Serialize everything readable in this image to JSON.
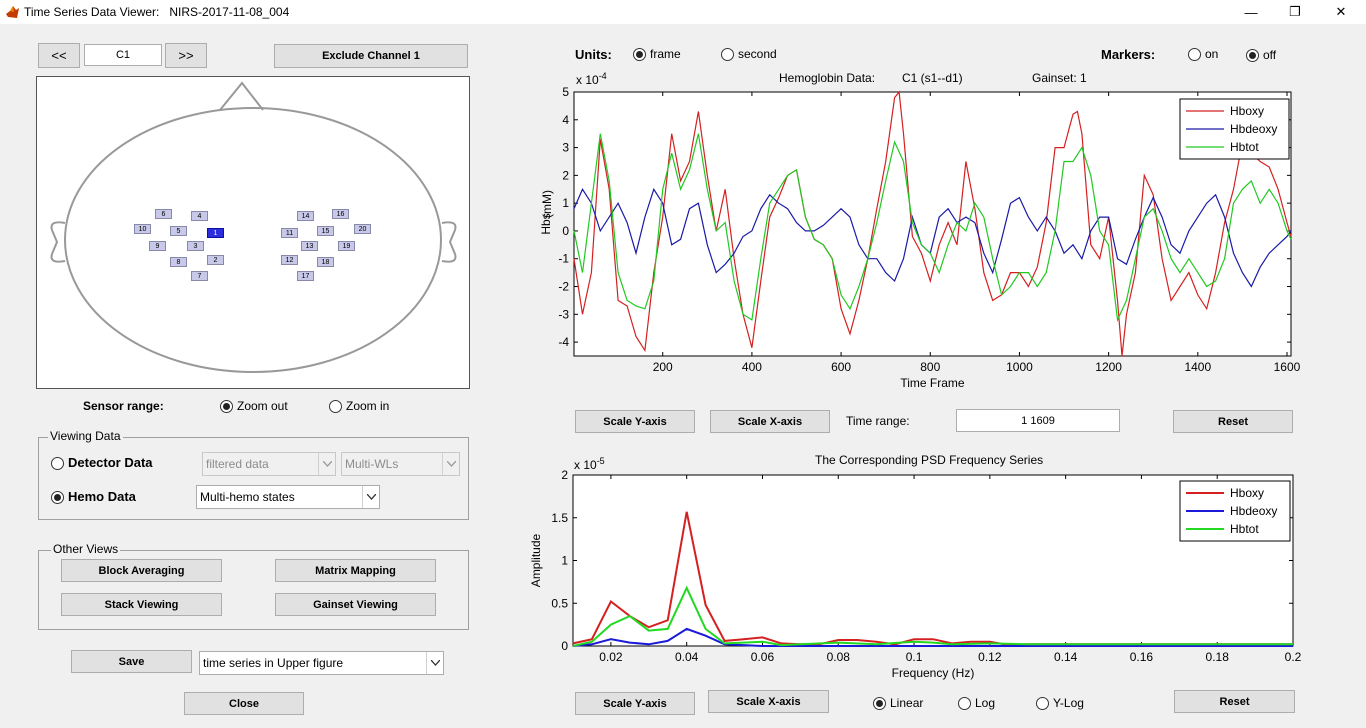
{
  "window": {
    "title": "Time Series Data Viewer:   NIRS-2017-11-08_004",
    "minimize": "—",
    "restore": "❐",
    "close": "✕"
  },
  "channel_nav": {
    "prev": "<<",
    "current": "C1",
    "next": ">>",
    "exclude": "Exclude Channel 1"
  },
  "probes": [
    "6",
    "4",
    "10",
    "5",
    "1",
    "9",
    "3",
    "8",
    "2",
    "7",
    "14",
    "16",
    "11",
    "15",
    "20",
    "13",
    "19",
    "12",
    "18",
    "17"
  ],
  "probe_selected": "1",
  "sensor_range": {
    "label": "Sensor range:",
    "zoom_out": "Zoom out",
    "zoom_in": "Zoom in",
    "selected": "zoom_out"
  },
  "viewing_data": {
    "title": "Viewing Data",
    "detector": "Detector Data",
    "hemo": "Hemo Data",
    "selected": "hemo",
    "filter_value": "filtered data",
    "wl_value": "Multi-WLs",
    "hemo_value": "Multi-hemo states"
  },
  "other_views": {
    "title": "Other Views",
    "block_averaging": "Block Averaging",
    "matrix_mapping": "Matrix Mapping",
    "stack_viewing": "Stack Viewing",
    "gainset_viewing": "Gainset Viewing"
  },
  "save": {
    "button": "Save",
    "target": "time series in Upper figure"
  },
  "close_button": "Close",
  "units": {
    "label": "Units:",
    "frame": "frame",
    "second": "second",
    "selected": "frame"
  },
  "markers": {
    "label": "Markers:",
    "on": "on",
    "off": "off",
    "selected": "off"
  },
  "top_plot": {
    "header_label": "Hemoglobin Data:",
    "header_channel": "C1  (s1--d1)",
    "header_gainset": "Gainset: 1",
    "exponent_base": "x 10",
    "exponent_power": "-4",
    "unit_label": "(mM)"
  },
  "top_controls": {
    "scale_y": "Scale Y-axis",
    "scale_x": "Scale X-axis",
    "time_range_label": "Time range:",
    "time_range_value": "1  1609",
    "reset": "Reset"
  },
  "bottom_plot": {
    "title": "The Corresponding PSD Frequency Series",
    "exponent_base": "x 10",
    "exponent_power": "-5"
  },
  "bottom_controls": {
    "scale_y": "Scale Y-axis",
    "scale_x": "Scale X-axis",
    "linear": "Linear",
    "log": "Log",
    "ylog": "Y-Log",
    "selected": "linear",
    "reset": "Reset"
  },
  "chart_data": [
    {
      "type": "line",
      "xlabel": "Time Frame",
      "ylabel": "Hbs",
      "xlim": [
        1,
        1609
      ],
      "ylim": [
        -4.5,
        5
      ],
      "xticks": [
        200,
        400,
        600,
        800,
        1000,
        1200,
        1400,
        1600
      ],
      "yticks": [
        -4,
        -3,
        -2,
        -1,
        0,
        1,
        2,
        3,
        4,
        5
      ],
      "legend_position": "top-right",
      "series": [
        {
          "name": "Hboxy",
          "color": "#d42020",
          "x": [
            1,
            20,
            40,
            60,
            80,
            100,
            120,
            140,
            160,
            180,
            200,
            220,
            240,
            260,
            280,
            300,
            320,
            340,
            360,
            380,
            400,
            420,
            440,
            460,
            480,
            500,
            520,
            540,
            560,
            580,
            600,
            620,
            640,
            660,
            680,
            700,
            720,
            730,
            740,
            760,
            780,
            800,
            820,
            840,
            860,
            880,
            900,
            920,
            940,
            960,
            980,
            1000,
            1020,
            1040,
            1060,
            1080,
            1100,
            1120,
            1130,
            1140,
            1160,
            1180,
            1200,
            1220,
            1230,
            1240,
            1260,
            1280,
            1300,
            1320,
            1340,
            1360,
            1380,
            1400,
            1420,
            1440,
            1460,
            1480,
            1500,
            1520,
            1540,
            1560,
            1580,
            1600,
            1609
          ],
          "y": [
            -1.0,
            -3.0,
            -1.5,
            3.3,
            1.5,
            -2.5,
            -2.7,
            -3.8,
            -4.3,
            -1.5,
            0.5,
            3.5,
            1.8,
            2.5,
            4.3,
            2.0,
            0.0,
            1.5,
            -1.0,
            -3.0,
            -4.2,
            -1.8,
            0.5,
            1.2,
            2.0,
            2.2,
            0.5,
            -0.3,
            -0.5,
            -1.0,
            -2.8,
            -3.7,
            -2.5,
            -1.0,
            0.8,
            2.5,
            4.8,
            5.0,
            3.5,
            -0.2,
            -0.8,
            -1.8,
            -0.5,
            0.3,
            -0.5,
            2.5,
            0.8,
            -1.5,
            -2.5,
            -2.3,
            -1.5,
            -1.5,
            -2.0,
            -1.3,
            0.3,
            3.0,
            3.0,
            4.2,
            4.3,
            3.5,
            -0.5,
            -1.0,
            0.5,
            -2.5,
            -4.5,
            -3.0,
            -1.5,
            2.0,
            1.3,
            -1.0,
            -2.5,
            -2.0,
            -1.5,
            -2.3,
            -2.8,
            -1.5,
            0.3,
            1.5,
            3.2,
            2.8,
            2.5,
            2.3,
            1.5,
            0.3,
            -0.2
          ]
        },
        {
          "name": "Hbdeoxy",
          "color": "#1a1aa8",
          "x": [
            1,
            20,
            40,
            60,
            80,
            100,
            120,
            140,
            160,
            180,
            200,
            220,
            240,
            260,
            280,
            300,
            320,
            340,
            360,
            380,
            400,
            420,
            440,
            460,
            480,
            500,
            520,
            540,
            560,
            580,
            600,
            620,
            640,
            660,
            680,
            700,
            720,
            740,
            760,
            780,
            800,
            820,
            840,
            860,
            880,
            900,
            920,
            940,
            960,
            980,
            1000,
            1020,
            1040,
            1060,
            1080,
            1100,
            1120,
            1140,
            1160,
            1180,
            1200,
            1220,
            1240,
            1260,
            1280,
            1300,
            1320,
            1340,
            1360,
            1380,
            1400,
            1420,
            1440,
            1460,
            1480,
            1500,
            1520,
            1540,
            1560,
            1580,
            1600,
            1609
          ],
          "y": [
            0.8,
            1.5,
            1.0,
            0.0,
            0.5,
            1.0,
            0.3,
            -0.8,
            0.5,
            1.5,
            1.0,
            -0.5,
            -0.3,
            0.8,
            1.0,
            -0.5,
            -1.5,
            -1.2,
            -0.8,
            -0.2,
            0.0,
            0.8,
            1.3,
            1.0,
            0.8,
            0.3,
            0.0,
            0.0,
            0.2,
            0.5,
            0.8,
            0.5,
            -0.5,
            -1.0,
            -1.0,
            -1.5,
            -1.8,
            -1.0,
            0.5,
            -0.5,
            -0.8,
            0.5,
            0.8,
            0.3,
            0.5,
            0.3,
            -0.8,
            -1.5,
            -0.3,
            1.0,
            1.2,
            0.5,
            0.0,
            0.5,
            0.0,
            -0.8,
            -0.5,
            -1.0,
            0.0,
            0.5,
            0.5,
            -1.0,
            -1.2,
            -0.3,
            0.5,
            1.2,
            0.5,
            -0.5,
            -0.8,
            0.0,
            0.5,
            1.0,
            1.3,
            0.5,
            -0.8,
            -1.5,
            -2.0,
            -1.3,
            -0.8,
            -0.5,
            -0.2,
            0.0
          ]
        },
        {
          "name": "Hbtot",
          "color": "#22c822",
          "x": [
            1,
            20,
            40,
            60,
            80,
            100,
            120,
            140,
            160,
            180,
            200,
            220,
            240,
            260,
            280,
            300,
            320,
            340,
            360,
            380,
            400,
            420,
            440,
            460,
            480,
            500,
            520,
            540,
            560,
            580,
            600,
            620,
            640,
            660,
            680,
            700,
            720,
            740,
            760,
            780,
            800,
            820,
            840,
            860,
            880,
            900,
            920,
            940,
            960,
            980,
            1000,
            1020,
            1040,
            1060,
            1080,
            1100,
            1120,
            1140,
            1160,
            1180,
            1200,
            1220,
            1240,
            1260,
            1280,
            1300,
            1320,
            1340,
            1360,
            1380,
            1400,
            1420,
            1440,
            1460,
            1480,
            1500,
            1520,
            1540,
            1560,
            1580,
            1600,
            1609
          ],
          "y": [
            0.0,
            -1.5,
            1.0,
            3.5,
            1.8,
            -1.5,
            -2.5,
            -2.7,
            -2.8,
            -1.8,
            1.5,
            2.8,
            1.5,
            2.2,
            3.5,
            1.5,
            0.0,
            0.3,
            -1.8,
            -3.0,
            -3.2,
            -1.0,
            1.0,
            1.5,
            2.0,
            2.2,
            0.5,
            -0.3,
            -0.5,
            -1.0,
            -2.3,
            -2.8,
            -2.0,
            -1.0,
            0.3,
            1.8,
            3.2,
            2.5,
            0.3,
            -0.5,
            -0.8,
            -1.5,
            -0.5,
            0.3,
            0.0,
            1.0,
            0.5,
            -1.0,
            -2.3,
            -2.0,
            -1.5,
            -1.5,
            -2.0,
            -1.5,
            0.0,
            2.5,
            2.5,
            3.0,
            2.0,
            0.0,
            -0.5,
            -3.2,
            -2.5,
            -1.0,
            0.5,
            0.8,
            0.0,
            -1.0,
            -1.5,
            -1.0,
            -1.5,
            -2.0,
            -1.8,
            -1.0,
            1.0,
            1.5,
            1.8,
            1.0,
            1.5,
            1.0,
            0.0,
            -0.3
          ]
        }
      ]
    },
    {
      "type": "line",
      "xlabel": "Frequency (Hz)",
      "ylabel": "Amplitude",
      "xlim": [
        0.01,
        0.2
      ],
      "ylim": [
        0,
        2
      ],
      "xticks": [
        0.02,
        0.04,
        0.06,
        0.08,
        0.1,
        0.12,
        0.14,
        0.16,
        0.18,
        0.2
      ],
      "yticks": [
        0,
        0.5,
        1,
        1.5,
        2
      ],
      "legend_position": "top-right",
      "series": [
        {
          "name": "Hboxy",
          "color": "#d42020",
          "x": [
            0.01,
            0.015,
            0.02,
            0.025,
            0.03,
            0.035,
            0.04,
            0.045,
            0.05,
            0.055,
            0.06,
            0.065,
            0.07,
            0.075,
            0.08,
            0.085,
            0.09,
            0.095,
            0.1,
            0.105,
            0.11,
            0.115,
            0.12,
            0.125,
            0.13,
            0.2
          ],
          "y": [
            0.03,
            0.08,
            0.52,
            0.35,
            0.22,
            0.3,
            1.57,
            0.48,
            0.06,
            0.08,
            0.1,
            0.03,
            0.02,
            0.02,
            0.07,
            0.07,
            0.05,
            0.02,
            0.08,
            0.08,
            0.03,
            0.05,
            0.05,
            0.01,
            0.02,
            0.02
          ]
        },
        {
          "name": "Hbdeoxy",
          "color": "#1a1ad8",
          "x": [
            0.01,
            0.015,
            0.02,
            0.025,
            0.03,
            0.035,
            0.04,
            0.045,
            0.05,
            0.06,
            0.2
          ],
          "y": [
            0.0,
            0.02,
            0.08,
            0.04,
            0.02,
            0.06,
            0.2,
            0.12,
            0.02,
            0.0,
            0.0
          ]
        },
        {
          "name": "Hbtot",
          "color": "#22d822",
          "x": [
            0.01,
            0.015,
            0.02,
            0.025,
            0.03,
            0.035,
            0.04,
            0.045,
            0.05,
            0.055,
            0.06,
            0.065,
            0.07,
            0.08,
            0.09,
            0.1,
            0.105,
            0.11,
            0.12,
            0.13,
            0.2
          ],
          "y": [
            0.0,
            0.05,
            0.25,
            0.35,
            0.18,
            0.2,
            0.68,
            0.2,
            0.03,
            0.04,
            0.05,
            0.01,
            0.02,
            0.04,
            0.02,
            0.05,
            0.04,
            0.02,
            0.03,
            0.02,
            0.02
          ]
        }
      ]
    }
  ]
}
